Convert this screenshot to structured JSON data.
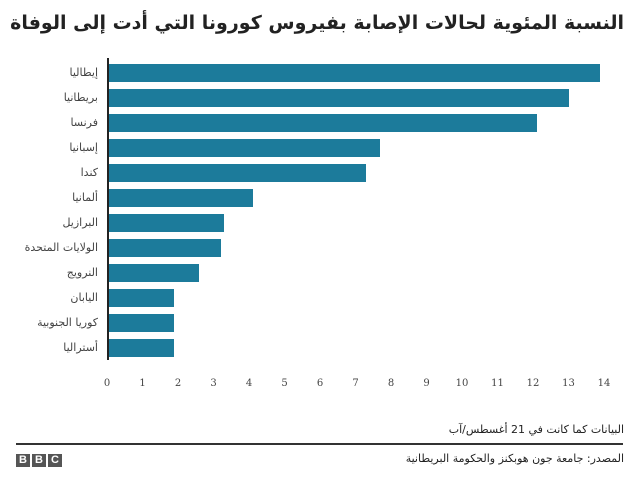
{
  "chart_data": {
    "type": "bar",
    "orientation": "horizontal",
    "title": "النسبة المئوية لحالات الإصابة بفيروس كورونا التي أدت إلى الوفاة",
    "xlabel": "",
    "ylabel": "",
    "xlim": [
      0,
      14
    ],
    "x_ticks": [
      "0",
      "1",
      "2",
      "3",
      "4",
      "5",
      "6",
      "7",
      "8",
      "9",
      "10",
      "11",
      "12",
      "13",
      "14"
    ],
    "grid": false,
    "legend": null,
    "categories": [
      "إيطاليا",
      "بريطانيا",
      "فرنسا",
      "إسبانيا",
      "كندا",
      "ألمانيا",
      "البرازيل",
      "الولايات المتحدة",
      "النرويج",
      "اليابان",
      "كوريا الجنوبية",
      "أستراليا"
    ],
    "values": [
      13.9,
      13.0,
      12.1,
      7.7,
      7.3,
      4.1,
      3.3,
      3.2,
      2.6,
      1.9,
      1.9,
      1.9
    ],
    "bar_color": "#1c7b9b"
  },
  "header": {
    "title": "النسبة المئوية لحالات الإصابة بفيروس كورونا التي أدت إلى الوفاة"
  },
  "bars": [
    {
      "label": "إيطاليا",
      "value": 13.9
    },
    {
      "label": "بريطانيا",
      "value": 13.0
    },
    {
      "label": "فرنسا",
      "value": 12.1
    },
    {
      "label": "إسبانيا",
      "value": 7.7
    },
    {
      "label": "كندا",
      "value": 7.3
    },
    {
      "label": "ألمانيا",
      "value": 4.1
    },
    {
      "label": "البرازيل",
      "value": 3.3
    },
    {
      "label": "الولايات المتحدة",
      "value": 3.2
    },
    {
      "label": "النرويج",
      "value": 2.6
    },
    {
      "label": "اليابان",
      "value": 1.9
    },
    {
      "label": "كوريا الجنوبية",
      "value": 1.9
    },
    {
      "label": "أستراليا",
      "value": 1.9
    }
  ],
  "axis": {
    "ticks": [
      "0",
      "1",
      "2",
      "3",
      "4",
      "5",
      "6",
      "7",
      "8",
      "9",
      "10",
      "11",
      "12",
      "13",
      "14"
    ]
  },
  "footer": {
    "note": "البيانات كما كانت في 21 أغسطس/آب",
    "source": "المصدر: جامعة جون هوبكنز والحكومة البريطانية",
    "logo_letters": [
      "B",
      "B",
      "C"
    ]
  },
  "colors": {
    "bar": "#1c7b9b",
    "axis": "#222222",
    "logo_bg": "#555555"
  }
}
